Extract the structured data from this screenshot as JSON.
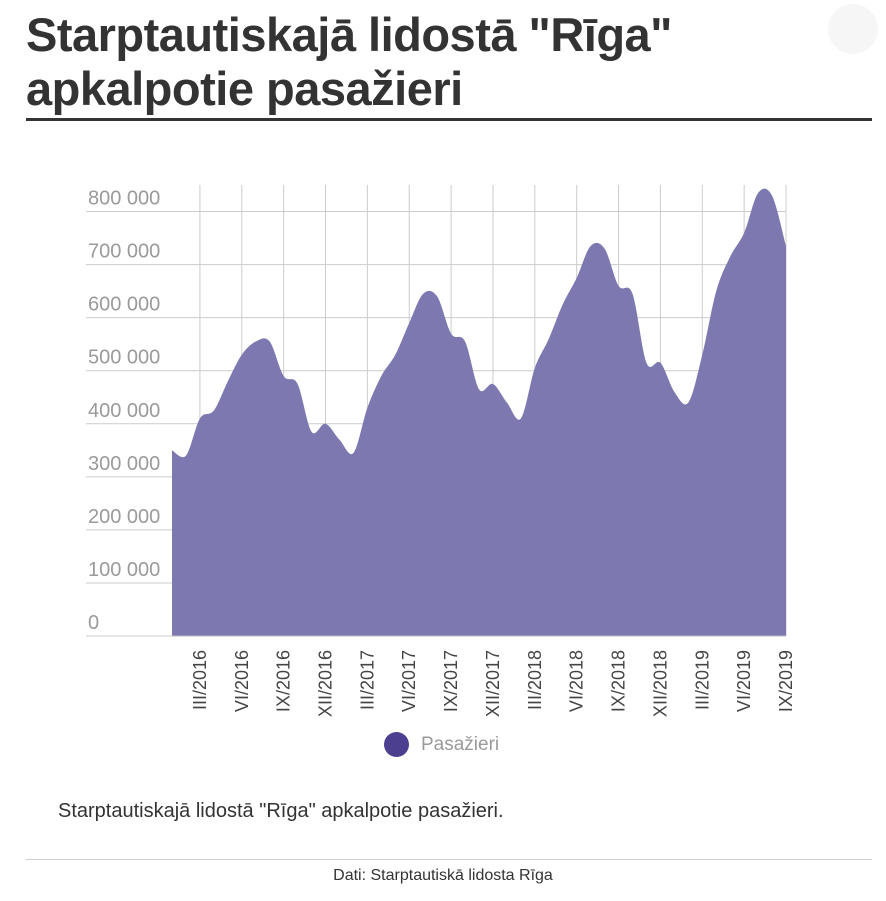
{
  "header": {
    "title": "Starptautiskajā lidostā \"Rīga\" apkalpotie pasažieri"
  },
  "chart_data": {
    "type": "area",
    "title": "Starptautiskajā lidostā \"Rīga\" apkalpotie pasažieri",
    "xlabel": "",
    "ylabel": "",
    "ylim": [
      0,
      850000
    ],
    "y_ticks": [
      0,
      100000,
      200000,
      300000,
      400000,
      500000,
      600000,
      700000,
      800000
    ],
    "y_tick_labels": [
      "0",
      "100 000",
      "200 000",
      "300 000",
      "400 000",
      "500 000",
      "600 000",
      "700 000",
      "800 000"
    ],
    "x_tick_labels": [
      "III/2016",
      "VI/2016",
      "IX/2016",
      "XII/2016",
      "III/2017",
      "VI/2017",
      "IX/2017",
      "XII/2017",
      "III/2018",
      "VI/2018",
      "IX/2018",
      "XII/2018",
      "III/2019",
      "VI/2019",
      "IX/2019"
    ],
    "x_tick_month_index": [
      2,
      5,
      8,
      11,
      14,
      17,
      20,
      23,
      26,
      29,
      32,
      35,
      38,
      41,
      44
    ],
    "grid": true,
    "legend_position": "bottom",
    "color": "#7d78b0",
    "legend_color": "#4c3f8f",
    "series": [
      {
        "name": "Pasažieri",
        "months": [
          "I/2016",
          "II/2016",
          "III/2016",
          "IV/2016",
          "V/2016",
          "VI/2016",
          "VII/2016",
          "VIII/2016",
          "IX/2016",
          "X/2016",
          "XI/2016",
          "XII/2016",
          "I/2017",
          "II/2017",
          "III/2017",
          "IV/2017",
          "V/2017",
          "VI/2017",
          "VII/2017",
          "VIII/2017",
          "IX/2017",
          "X/2017",
          "XI/2017",
          "XII/2017",
          "I/2018",
          "II/2018",
          "III/2018",
          "IV/2018",
          "V/2018",
          "VI/2018",
          "VII/2018",
          "VIII/2018",
          "IX/2018",
          "X/2018",
          "XI/2018",
          "XII/2018",
          "I/2019",
          "II/2019",
          "III/2019",
          "IV/2019",
          "V/2019",
          "VI/2019",
          "VII/2019",
          "VIII/2019",
          "IX/2019"
        ],
        "values": [
          350000,
          340000,
          410000,
          425000,
          480000,
          530000,
          555000,
          555000,
          490000,
          475000,
          385000,
          400000,
          370000,
          345000,
          430000,
          490000,
          530000,
          590000,
          645000,
          640000,
          570000,
          555000,
          465000,
          475000,
          440000,
          410000,
          505000,
          560000,
          625000,
          675000,
          735000,
          730000,
          660000,
          645000,
          515000,
          515000,
          460000,
          440000,
          530000,
          650000,
          715000,
          760000,
          835000,
          830000,
          735000
        ]
      }
    ]
  },
  "legend": {
    "label": "Pasažieri"
  },
  "description": "Starptautiskajā lidostā \"Rīga\" apkalpotie pasažieri.",
  "source": "Dati: Starptautiskā lidosta Rīga"
}
